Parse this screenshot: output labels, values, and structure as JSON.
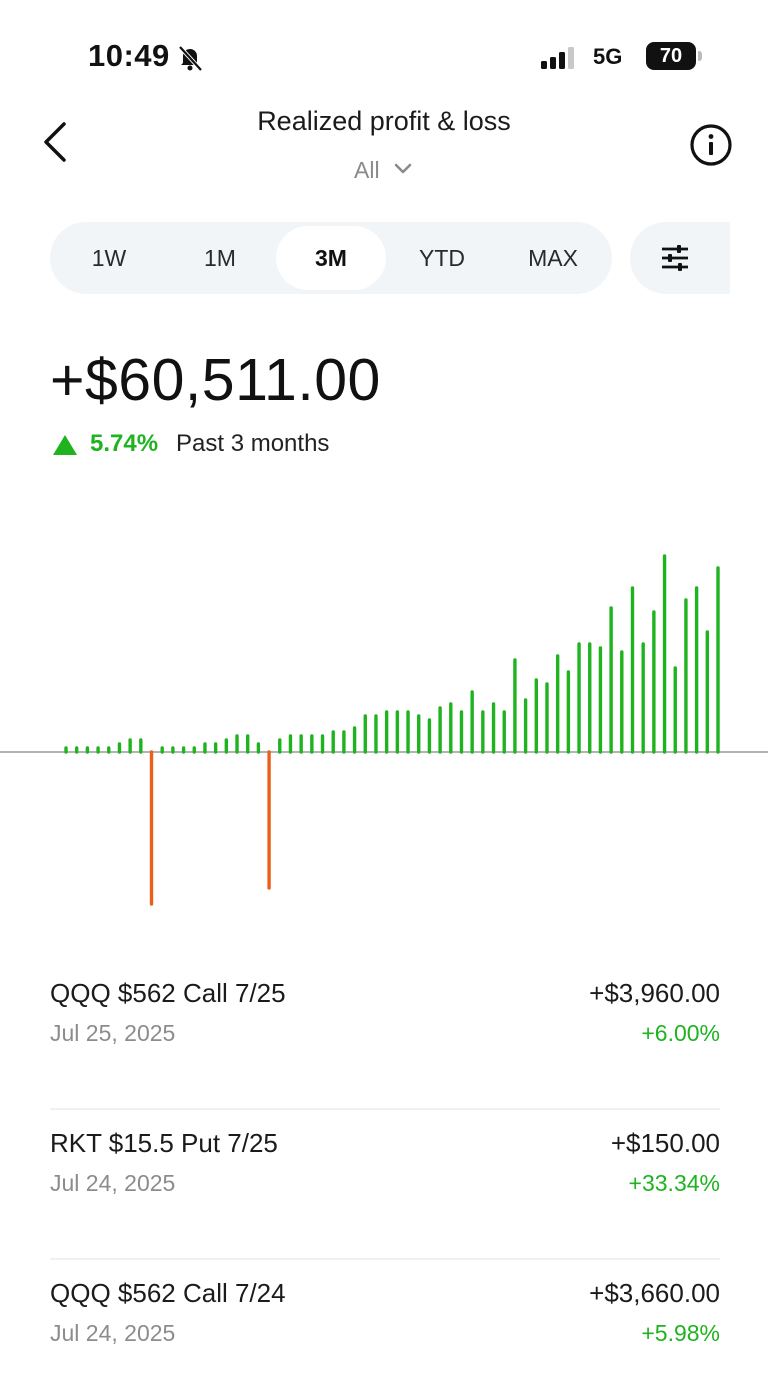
{
  "status_bar": {
    "time": "10:49",
    "network": "5G",
    "battery": "70"
  },
  "header": {
    "title": "Realized profit & loss",
    "filter": "All"
  },
  "range_tabs": [
    {
      "label": "1W",
      "active": false
    },
    {
      "label": "1M",
      "active": false
    },
    {
      "label": "3M",
      "active": true
    },
    {
      "label": "YTD",
      "active": false
    },
    {
      "label": "MAX",
      "active": false
    }
  ],
  "summary": {
    "total": "+$60,511.00",
    "change_pct": "5.74%",
    "period": "Past 3 months"
  },
  "colors": {
    "positive": "#1fb320",
    "negative": "#e8601c",
    "baseline": "#9a9a9a"
  },
  "chart_data": {
    "type": "bar",
    "values": [
      1,
      1,
      1,
      1,
      1,
      2,
      3,
      3,
      -38,
      1,
      1,
      1,
      1,
      2,
      2,
      3,
      4,
      4,
      2,
      -34,
      3,
      4,
      4,
      4,
      4,
      5,
      5,
      6,
      9,
      9,
      10,
      10,
      10,
      9,
      8,
      11,
      12,
      10,
      15,
      10,
      12,
      10,
      23,
      13,
      18,
      17,
      24,
      20,
      27,
      27,
      26,
      36,
      25,
      41,
      27,
      35,
      49,
      21,
      38,
      41,
      30,
      46
    ],
    "grid": false,
    "legend": "none"
  },
  "trades": [
    {
      "name": "QQQ $562 Call 7/25",
      "date": "Jul 25, 2025",
      "amount": "+$3,960.00",
      "pct": "+6.00%"
    },
    {
      "name": "RKT $15.5 Put 7/25",
      "date": "Jul 24, 2025",
      "amount": "+$150.00",
      "pct": "+33.34%"
    },
    {
      "name": "QQQ $562 Call 7/24",
      "date": "Jul 24, 2025",
      "amount": "+$3,660.00",
      "pct": "+5.98%"
    }
  ]
}
